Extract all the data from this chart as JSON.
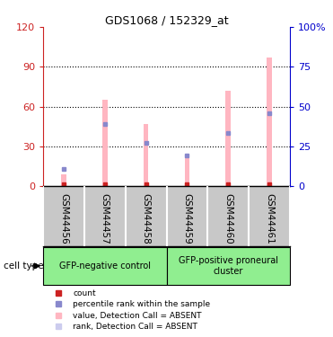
{
  "title": "GDS1068 / 152329_at",
  "samples": [
    "GSM44456",
    "GSM44457",
    "GSM44458",
    "GSM44459",
    "GSM44460",
    "GSM44461"
  ],
  "pink_bar_heights": [
    9,
    65,
    47,
    22,
    72,
    97
  ],
  "blue_marker_heights": [
    13,
    47,
    33,
    23,
    40,
    55
  ],
  "red_marker_heights": [
    1.5,
    1.5,
    1.5,
    1.5,
    1.5,
    1.5
  ],
  "ylim": [
    0,
    120
  ],
  "yticks": [
    0,
    30,
    60,
    90,
    120
  ],
  "ytick_labels_left": [
    "0",
    "30",
    "60",
    "90",
    "120"
  ],
  "right_ytick_labels": [
    "0",
    "25",
    "50",
    "75",
    "100%"
  ],
  "group_labels": [
    "GFP-negative control",
    "GFP-positive proneural\ncluster"
  ],
  "group_colors": [
    "#90EE90",
    "#90EE90"
  ],
  "group_starts": [
    0,
    3
  ],
  "group_ends": [
    3,
    6
  ],
  "pink_color": "#FFB6C1",
  "blue_color": "#8888CC",
  "red_color": "#CC2222",
  "bar_width": 0.12,
  "cell_type_label": "cell type",
  "legend_items": [
    {
      "label": "count",
      "color": "#CC2222"
    },
    {
      "label": "percentile rank within the sample",
      "color": "#8888CC"
    },
    {
      "label": "value, Detection Call = ABSENT",
      "color": "#FFB6C1"
    },
    {
      "label": "rank, Detection Call = ABSENT",
      "color": "#CCCCEE"
    }
  ],
  "left_axis_color": "#CC2222",
  "right_axis_color": "#0000CC",
  "background_color": "#FFFFFF",
  "tick_label_bg": "#C8C8C8",
  "plot_border_color": "#000000",
  "group_border_color": "#000000"
}
